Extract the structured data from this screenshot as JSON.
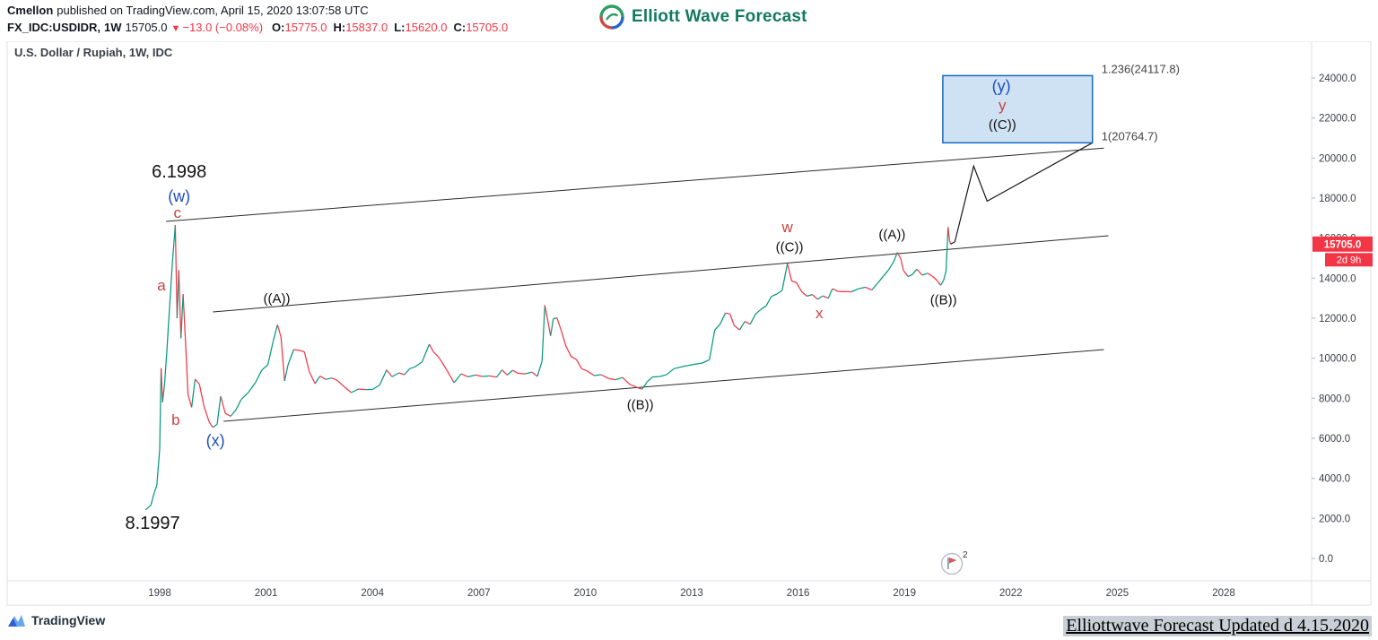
{
  "header": {
    "author": "Cmellon",
    "published": "published on TradingView.com, April 15, 2020 13:07:58 UTC",
    "symbol": "FX_IDC:USDIDR,",
    "timeframe": "1W",
    "last_price": "15705.0",
    "direction_icon": "▼",
    "change": "−13.0 (−0.08%)",
    "o_label": "O:",
    "o": "15775.0",
    "h_label": "H:",
    "h": "15837.0",
    "l_label": "L:",
    "l": "15620.0",
    "c_label": "C:",
    "c": "15705.0",
    "brand": "Elliott Wave Forecast"
  },
  "chart": {
    "title": "U.S. Dollar / Rupiah, 1W, IDC",
    "price_badge": "15705.0",
    "countdown_badge": "2d 9h",
    "marker_badge": "2"
  },
  "footer": {
    "tradingview": "TradingView",
    "watermark": "Elliottwave Forecast Updated d 4.15.2020"
  },
  "colors": {
    "up": "#089981",
    "down": "#f23645",
    "badge": "#f23645",
    "blue_label": "#1d4fc0",
    "red_label": "#cc4040",
    "black_label": "#111111",
    "box_fill": "#cfe2f3",
    "box_border": "#1866c4",
    "brand_green": "#127a5e",
    "channel_line": "#2b2b2b"
  },
  "chart_data": {
    "type": "line",
    "title": "U.S. Dollar / Rupiah, 1W, IDC",
    "symbol": "USDIDR",
    "timeframe": "1W",
    "x_range": [
      1993.7,
      2030.5
    ],
    "y_range": [
      0,
      25800
    ],
    "x_ticks": [
      "1998",
      "2001",
      "2004",
      "2007",
      "2010",
      "2013",
      "2016",
      "2019",
      "2022",
      "2025",
      "2028"
    ],
    "y_ticks": [
      "24000.0",
      "22000.0",
      "20000.0",
      "18000.0",
      "16000.0",
      "14000.0",
      "12000.0",
      "10000.0",
      "8000.0",
      "6000.0",
      "4000.0",
      "2000.0",
      "0.0"
    ],
    "last_price": 15705.0,
    "series": [
      [
        1997.6,
        2430
      ],
      [
        1997.75,
        2650
      ],
      [
        1997.85,
        3300
      ],
      [
        1997.92,
        3650
      ],
      [
        1998.0,
        5450
      ],
      [
        1998.04,
        9500
      ],
      [
        1998.08,
        7800
      ],
      [
        1998.14,
        8750
      ],
      [
        1998.2,
        10300
      ],
      [
        1998.28,
        12600
      ],
      [
        1998.36,
        14800
      ],
      [
        1998.44,
        16650
      ],
      [
        1998.49,
        12000
      ],
      [
        1998.54,
        14400
      ],
      [
        1998.6,
        11000
      ],
      [
        1998.66,
        13200
      ],
      [
        1998.72,
        11075
      ],
      [
        1998.8,
        8200
      ],
      [
        1998.9,
        7550
      ],
      [
        1999.0,
        8950
      ],
      [
        1999.12,
        8700
      ],
      [
        1999.25,
        7600
      ],
      [
        1999.4,
        6800
      ],
      [
        1999.5,
        6550
      ],
      [
        1999.62,
        6700
      ],
      [
        1999.72,
        8100
      ],
      [
        1999.85,
        7250
      ],
      [
        2000.0,
        7100
      ],
      [
        2000.15,
        7425
      ],
      [
        2000.3,
        7945
      ],
      [
        2000.5,
        8290
      ],
      [
        2000.7,
        8780
      ],
      [
        2000.88,
        9410
      ],
      [
        2001.05,
        9675
      ],
      [
        2001.2,
        10850
      ],
      [
        2001.32,
        11675
      ],
      [
        2001.42,
        11058
      ],
      [
        2001.52,
        8865
      ],
      [
        2001.62,
        9675
      ],
      [
        2001.78,
        10435
      ],
      [
        2001.92,
        10400
      ],
      [
        2002.08,
        10320
      ],
      [
        2002.22,
        9316
      ],
      [
        2002.38,
        8730
      ],
      [
        2002.52,
        9108
      ],
      [
        2002.68,
        8940
      ],
      [
        2002.85,
        9015
      ],
      [
        2003.0,
        8902
      ],
      [
        2003.2,
        8580
      ],
      [
        2003.4,
        8285
      ],
      [
        2003.6,
        8460
      ],
      [
        2003.8,
        8437
      ],
      [
        2004.0,
        8441
      ],
      [
        2004.2,
        8661
      ],
      [
        2004.4,
        9415
      ],
      [
        2004.55,
        9080
      ],
      [
        2004.75,
        9270
      ],
      [
        2004.9,
        9180
      ],
      [
        2005.05,
        9480
      ],
      [
        2005.2,
        9570
      ],
      [
        2005.4,
        9819
      ],
      [
        2005.6,
        10700
      ],
      [
        2005.72,
        10310
      ],
      [
        2005.85,
        10090
      ],
      [
        2005.95,
        9830
      ],
      [
        2006.1,
        9395
      ],
      [
        2006.3,
        8775
      ],
      [
        2006.5,
        9220
      ],
      [
        2006.7,
        9070
      ],
      [
        2006.9,
        9160
      ],
      [
        2007.1,
        9090
      ],
      [
        2007.3,
        9118
      ],
      [
        2007.5,
        9055
      ],
      [
        2007.65,
        9415
      ],
      [
        2007.8,
        9160
      ],
      [
        2007.95,
        9400
      ],
      [
        2008.1,
        9250
      ],
      [
        2008.3,
        9220
      ],
      [
        2008.5,
        9305
      ],
      [
        2008.65,
        9095
      ],
      [
        2008.78,
        9860
      ],
      [
        2008.86,
        12650
      ],
      [
        2008.94,
        11900
      ],
      [
        2009.02,
        11120
      ],
      [
        2009.1,
        11975
      ],
      [
        2009.2,
        12020
      ],
      [
        2009.32,
        11400
      ],
      [
        2009.45,
        10615
      ],
      [
        2009.6,
        10090
      ],
      [
        2009.75,
        9935
      ],
      [
        2009.9,
        9480
      ],
      [
        2010.05,
        9365
      ],
      [
        2010.25,
        9135
      ],
      [
        2010.45,
        9180
      ],
      [
        2010.65,
        8990
      ],
      [
        2010.85,
        8930
      ],
      [
        2011.05,
        9035
      ],
      [
        2011.25,
        8700
      ],
      [
        2011.45,
        8550
      ],
      [
        2011.6,
        8460
      ],
      [
        2011.75,
        8835
      ],
      [
        2011.9,
        9065
      ],
      [
        2012.1,
        9085
      ],
      [
        2012.3,
        9190
      ],
      [
        2012.5,
        9480
      ],
      [
        2012.7,
        9565
      ],
      [
        2012.9,
        9640
      ],
      [
        2013.1,
        9705
      ],
      [
        2013.3,
        9760
      ],
      [
        2013.5,
        9925
      ],
      [
        2013.65,
        11410
      ],
      [
        2013.8,
        11700
      ],
      [
        2013.95,
        12260
      ],
      [
        2014.08,
        12210
      ],
      [
        2014.2,
        11635
      ],
      [
        2014.35,
        11420
      ],
      [
        2014.5,
        11840
      ],
      [
        2014.65,
        11700
      ],
      [
        2014.8,
        12210
      ],
      [
        2014.95,
        12440
      ],
      [
        2015.1,
        12620
      ],
      [
        2015.25,
        13090
      ],
      [
        2015.4,
        13210
      ],
      [
        2015.55,
        13390
      ],
      [
        2015.7,
        14730
      ],
      [
        2015.82,
        13855
      ],
      [
        2015.95,
        13785
      ],
      [
        2016.1,
        13320
      ],
      [
        2016.25,
        13100
      ],
      [
        2016.4,
        13180
      ],
      [
        2016.55,
        12950
      ],
      [
        2016.7,
        13115
      ],
      [
        2016.85,
        13000
      ],
      [
        2016.97,
        13475
      ],
      [
        2017.12,
        13340
      ],
      [
        2017.3,
        13325
      ],
      [
        2017.5,
        13320
      ],
      [
        2017.7,
        13470
      ],
      [
        2017.9,
        13550
      ],
      [
        2018.08,
        13410
      ],
      [
        2018.25,
        13765
      ],
      [
        2018.4,
        14090
      ],
      [
        2018.55,
        14410
      ],
      [
        2018.7,
        14840
      ],
      [
        2018.8,
        15290
      ],
      [
        2018.9,
        14950
      ],
      [
        2018.97,
        14380
      ],
      [
        2019.1,
        14080
      ],
      [
        2019.22,
        14180
      ],
      [
        2019.35,
        14450
      ],
      [
        2019.5,
        14150
      ],
      [
        2019.65,
        14250
      ],
      [
        2019.8,
        14080
      ],
      [
        2019.92,
        13880
      ],
      [
        2020.02,
        13650
      ],
      [
        2020.1,
        13880
      ],
      [
        2020.17,
        14350
      ],
      [
        2020.23,
        16550
      ],
      [
        2020.27,
        15880
      ],
      [
        2020.3,
        15705
      ]
    ],
    "channel_lines": [
      {
        "from": [
          1998.18,
          16836
        ],
        "to": [
          2024.62,
          20500
        ]
      },
      {
        "from": [
          1999.5,
          12313
        ],
        "to": [
          2024.75,
          16119
        ]
      },
      {
        "from": [
          1999.8,
          6851
        ],
        "to": [
          2024.62,
          10433
        ]
      }
    ],
    "projection": [
      [
        2020.3,
        15705
      ],
      [
        2020.42,
        15810
      ],
      [
        2020.95,
        19600
      ],
      [
        2021.33,
        17850
      ],
      [
        2024.3,
        20764.7
      ]
    ],
    "target_box": {
      "year_start": 2020.08,
      "year_end": 2024.3,
      "price_low": 20764.7,
      "price_high": 24117.8
    },
    "fib_labels": [
      {
        "text": "1.236(24117.8)",
        "price": 24117.8
      },
      {
        "text": "1(20764.7)",
        "price": 20764.7
      }
    ],
    "wave_labels": [
      {
        "text": "6.1998",
        "color": "black",
        "size": "xl",
        "year": 1998.55,
        "price": 19350
      },
      {
        "text": "(w)",
        "color": "blue",
        "size": "lg",
        "year": 1998.55,
        "price": 18100
      },
      {
        "text": "c",
        "color": "red",
        "size": "md",
        "year": 1998.5,
        "price": 17280
      },
      {
        "text": "a",
        "color": "red",
        "size": "md",
        "year": 1998.05,
        "price": 13650
      },
      {
        "text": "b",
        "color": "red",
        "size": "md",
        "year": 1998.45,
        "price": 6940
      },
      {
        "text": "(x)",
        "color": "blue",
        "size": "lg",
        "year": 1999.57,
        "price": 5900
      },
      {
        "text": "8.1997",
        "color": "black",
        "size": "xl",
        "year": 1997.8,
        "price": 1800
      },
      {
        "text": "((A))",
        "color": "black",
        "size": "sm",
        "year": 2001.3,
        "price": 12990
      },
      {
        "text": "((B))",
        "color": "black",
        "size": "sm",
        "year": 2011.55,
        "price": 7700
      },
      {
        "text": "w",
        "color": "red",
        "size": "md",
        "year": 2015.7,
        "price": 16570
      },
      {
        "text": "((C))",
        "color": "black",
        "size": "sm",
        "year": 2015.76,
        "price": 15580
      },
      {
        "text": "x",
        "color": "red",
        "size": "md",
        "year": 2016.6,
        "price": 12270
      },
      {
        "text": "((A))",
        "color": "black",
        "size": "sm",
        "year": 2018.65,
        "price": 16210
      },
      {
        "text": "((B))",
        "color": "black",
        "size": "sm",
        "year": 2020.1,
        "price": 12940
      },
      {
        "text": "(y)",
        "color": "blue",
        "size": "lg",
        "year": 2021.73,
        "price": 23600
      },
      {
        "text": "y",
        "color": "red",
        "size": "md",
        "year": 2021.76,
        "price": 22660
      },
      {
        "text": "((C))",
        "color": "black",
        "size": "sm",
        "year": 2021.76,
        "price": 21680
      }
    ]
  }
}
